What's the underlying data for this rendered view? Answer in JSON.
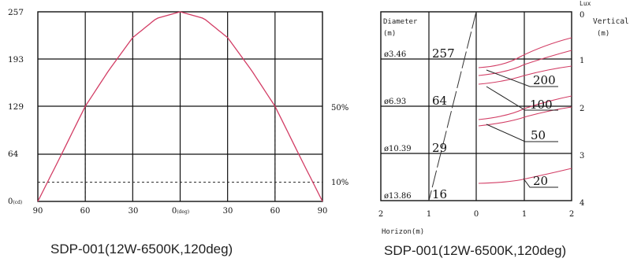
{
  "charts": {
    "left": {
      "caption": "SDP-001(12W-6500K,120deg)",
      "y_tick_labels": [
        "257",
        "193",
        "129",
        "64",
        "0"
      ],
      "y_unit": "(cd)",
      "x_tick_labels": [
        "90",
        "60",
        "30",
        "0",
        "30",
        "60",
        "90"
      ],
      "x_center_unit": "(deg)",
      "ref_labels": [
        "50%",
        "10%"
      ]
    },
    "right": {
      "caption": "SDP-001(12W-6500K,120deg)",
      "lux_label": "Lux",
      "vertical_label": "Vertical",
      "vertical_unit": "(m)",
      "diameter_label": "Diameter",
      "diameter_unit": "(m)",
      "horizon_label": "Horizon(m)",
      "diameters": [
        "ø3.46",
        "ø6.93",
        "ø10.39",
        "ø13.86"
      ],
      "center_lux": [
        "257",
        "64",
        "29",
        "16"
      ],
      "vertical_ticks": [
        "0",
        "1",
        "2",
        "3",
        "4"
      ],
      "horizon_ticks": [
        "2",
        "1",
        "0",
        "1",
        "2"
      ],
      "contour_lux": [
        "200",
        "100",
        "50",
        "20"
      ]
    }
  },
  "chart_data": [
    {
      "type": "line",
      "x": [
        -90,
        -75,
        -60,
        -45,
        -30,
        -15,
        0,
        15,
        30,
        45,
        60,
        75,
        90
      ],
      "series": [
        {
          "values": [
            0,
            64,
            129,
            178,
            222,
            248,
            257,
            248,
            222,
            178,
            129,
            64,
            0
          ]
        }
      ],
      "title": "SDP-001(12W-6500K,120deg)",
      "ylabel": "(cd)",
      "xlabel": "(deg)",
      "ylim": [
        0,
        257
      ],
      "xlim": [
        -90,
        90
      ],
      "reference_lines": [
        {
          "label": "50%",
          "y": 129,
          "x": [
            -60,
            60
          ]
        },
        {
          "label": "10%",
          "y": 26
        }
      ],
      "colors": {
        "curve": "#d23c64",
        "grid": "#111111"
      }
    },
    {
      "type": "line",
      "title": "SDP-001(12W-6500K,120deg)",
      "xlabel": "Horizon(m)",
      "ylabel": "Vertical (m)",
      "categories": [
        "ø3.46",
        "ø6.93",
        "ø10.39",
        "ø13.86"
      ],
      "center_illuminance": [
        257,
        64,
        29,
        16
      ],
      "distance_m": [
        1,
        2,
        3,
        4
      ],
      "contour_labels": [
        200,
        100,
        50,
        20
      ],
      "xlim": [
        -2,
        2
      ],
      "ylim": [
        4,
        0
      ],
      "colors": {
        "curve": "#d23c64",
        "grid": "#111111"
      }
    }
  ]
}
